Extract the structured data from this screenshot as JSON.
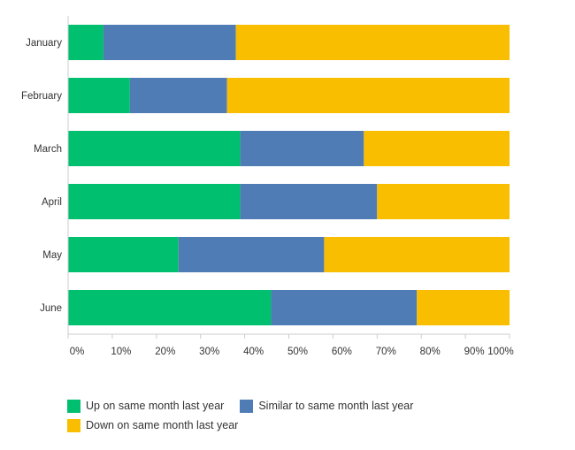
{
  "chart_data": {
    "type": "bar",
    "orientation": "horizontal",
    "stacked": true,
    "title": "",
    "xlabel": "",
    "ylabel": "",
    "xlim": [
      0,
      100
    ],
    "x_ticks": [
      "0%",
      "10%",
      "20%",
      "30%",
      "40%",
      "50%",
      "60%",
      "70%",
      "80%",
      "90%",
      "100%"
    ],
    "categories": [
      "January",
      "February",
      "March",
      "April",
      "May",
      "June"
    ],
    "series": [
      {
        "name": "Up on same month last year",
        "color": "#00bf6f",
        "values": [
          8,
          14,
          39,
          39,
          25,
          46
        ]
      },
      {
        "name": "Similar to same month last year",
        "color": "#507cb6",
        "values": [
          30,
          22,
          28,
          31,
          33,
          33
        ]
      },
      {
        "name": "Down on same month last year",
        "color": "#f9be00",
        "values": [
          62,
          64,
          33,
          30,
          42,
          21
        ]
      }
    ],
    "legend_position": "bottom-left"
  }
}
